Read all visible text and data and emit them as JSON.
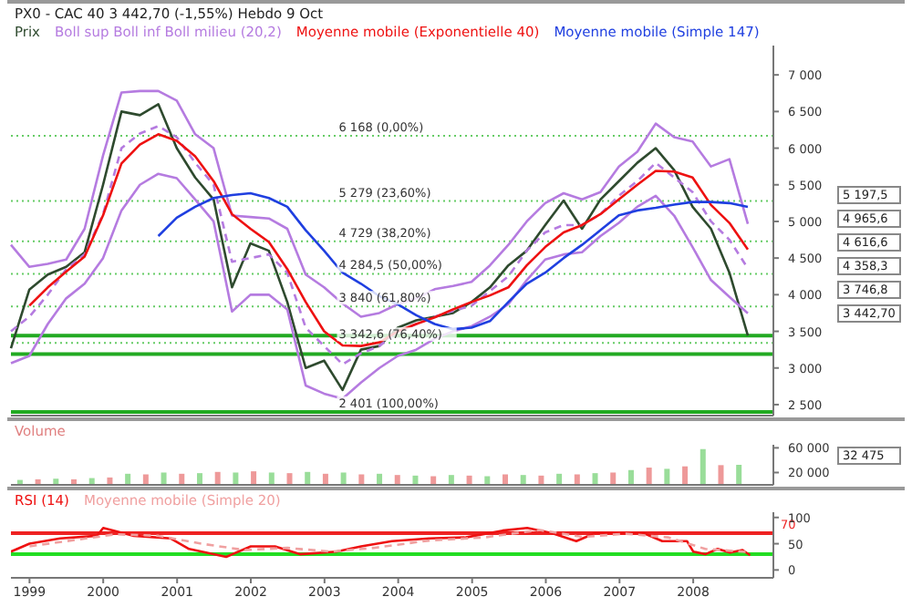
{
  "chart_data": [
    {
      "type": "line",
      "title": "PX0 - CAC 40   3 442,70 (-1,55%)   Hebdo  9 Oct",
      "tick_labels": "y",
      "categories": [
        null,
        null,
        null,
        null,
        null,
        null,
        null,
        null,
        null,
        null,
        null,
        null,
        null,
        null,
        null,
        null,
        null,
        null,
        null,
        null,
        null,
        null,
        null,
        null,
        null,
        null,
        null,
        null,
        null,
        null,
        null,
        null,
        null,
        null,
        null,
        null,
        null,
        null,
        null,
        null,
        null
      ],
      "ylim": [
        2350,
        7400
      ],
      "yticks": [
        {
          "value": 2500,
          "label": "2 500"
        },
        {
          "value": 3000,
          "label": "3 000"
        },
        {
          "value": 3500,
          "label": "3 500"
        },
        {
          "value": 4000,
          "label": "4 000"
        },
        {
          "value": 4500,
          "label": "4 500"
        },
        {
          "value": 5000,
          "label": "5 000"
        },
        {
          "value": 5500,
          "label": "5 500"
        },
        {
          "value": 6000,
          "label": "6 000"
        },
        {
          "value": 6500,
          "label": "6 500"
        },
        {
          "value": 7000,
          "label": "7 000"
        }
      ],
      "series": [
        {
          "name": "Prix",
          "color": "#2e4a2e",
          "values": [
            3270,
            4070,
            4275,
            4380,
            4580,
            5500,
            6500,
            6450,
            6600,
            6000,
            5600,
            5300,
            4100,
            4700,
            4600,
            3900,
            3000,
            3100,
            2700,
            3250,
            3300,
            3550,
            3650,
            3700,
            3750,
            3900,
            4100,
            4400,
            4600,
            4950,
            5285,
            4900,
            5300,
            5550,
            5800,
            6000,
            5700,
            5200,
            4900,
            4300,
            3442.7
          ]
        },
        {
          "name": "Boll sup Boll inf Boll milieu (20,2)",
          "color": "#b57be0",
          "values": [
            4680,
            4380,
            4420,
            4480,
            4900,
            5900,
            6760,
            6780,
            6780,
            6650,
            6190,
            6000,
            5080,
            5060,
            5040,
            4900,
            4275,
            4100,
            3880,
            3700,
            3750,
            3870,
            3950,
            4075,
            4120,
            4175,
            4400,
            4680,
            5000,
            5250,
            5385,
            5300,
            5400,
            5750,
            5950,
            6335,
            6150,
            6090,
            5750,
            5850,
            4965.6
          ]
        },
        {
          "color": "#b57be0",
          "values": [
            3065,
            3165,
            3600,
            3950,
            4150,
            4500,
            5150,
            5500,
            5650,
            5590,
            5300,
            5000,
            3770,
            4000,
            4000,
            3800,
            2760,
            2650,
            2580,
            2800,
            3000,
            3165,
            3250,
            3400,
            3500,
            3570,
            3700,
            3870,
            4200,
            4480,
            4550,
            4580,
            4800,
            4980,
            5200,
            5350,
            5080,
            4650,
            4200,
            3970,
            3746.8
          ]
        },
        {
          "color": "#b57be0",
          "line_style": "dashed",
          "values": [
            3500,
            3700,
            4000,
            4350,
            4550,
            5100,
            6000,
            6200,
            6300,
            6150,
            5800,
            5500,
            4450,
            4500,
            4550,
            4300,
            3550,
            3300,
            3050,
            3200,
            3300,
            3500,
            3600,
            3700,
            3780,
            3850,
            4050,
            4250,
            4600,
            4850,
            4950,
            4950,
            5100,
            5350,
            5550,
            5800,
            5600,
            5400,
            5000,
            4750,
            4358.3
          ]
        },
        {
          "name": "Moyenne mobile (Exponentielle 40)",
          "color": "#ee1111",
          "values": [
            null,
            3850,
            4100,
            4316,
            4520,
            5083,
            5790,
            6050,
            6190,
            6100,
            5890,
            5550,
            5100,
            4900,
            4720,
            4350,
            3900,
            3500,
            3307,
            3300,
            3350,
            3500,
            3600,
            3690,
            3800,
            3900,
            3990,
            4100,
            4400,
            4650,
            4850,
            4950,
            5100,
            5300,
            5500,
            5690,
            5680,
            5600,
            5225,
            4980,
            4616.6
          ]
        },
        {
          "name": "Moyenne mobile (Simple 147)",
          "color": "#1f3fe0",
          "values": [
            null,
            null,
            null,
            null,
            null,
            null,
            null,
            null,
            4800,
            5050,
            5200,
            5320,
            5360,
            5385,
            5320,
            5200,
            4880,
            4600,
            4300,
            4150,
            3980,
            3870,
            3720,
            3600,
            3530,
            3550,
            3640,
            3900,
            4150,
            4300,
            4500,
            4680,
            4880,
            5083,
            5150,
            5185,
            5230,
            5265,
            5265,
            5250,
            5197.5
          ]
        }
      ],
      "ref_lines": [
        {
          "axis": "y",
          "value": 6168,
          "label": "6 168 (0,00%)",
          "color": "#66cc66",
          "line_style": "dotted"
        },
        {
          "axis": "y",
          "value": 5279,
          "label": "5 279 (23,60%)",
          "color": "#66cc66",
          "line_style": "dotted"
        },
        {
          "axis": "y",
          "value": 4729,
          "label": "4 729 (38,20%)",
          "color": "#66cc66",
          "line_style": "dotted"
        },
        {
          "axis": "y",
          "value": 4284.5,
          "label": "4 284,5 (50,00%)",
          "color": "#66cc66",
          "line_style": "dotted"
        },
        {
          "axis": "y",
          "value": 3840,
          "label": "3 840 (61,80%)",
          "color": "#66cc66",
          "line_style": "dotted"
        },
        {
          "axis": "y",
          "value": 3342.6,
          "label": "3 342,6 (76,40%)",
          "color": "#66cc66",
          "line_style": "dotted"
        },
        {
          "axis": "y",
          "value": 2401,
          "label": "2 401 (100,00%)",
          "color": "#22aa22",
          "line_style": "solid"
        },
        {
          "axis": "y",
          "value": 3442.7,
          "color": "#22aa22",
          "line_style": "solid"
        },
        {
          "axis": "y",
          "value": 3190,
          "color": "#22aa22",
          "line_style": "solid"
        }
      ],
      "annotations": [
        "5 197,5",
        "4 965,6",
        "4 616,6",
        "4 358,3",
        "3 746,8",
        "3 442,70"
      ]
    },
    {
      "type": "bar",
      "title": "Volume",
      "tick_labels": "y",
      "categories": [
        null,
        null,
        null,
        null,
        null,
        null,
        null,
        null,
        null,
        null,
        null,
        null,
        null,
        null,
        null,
        null,
        null,
        null,
        null,
        null,
        null,
        null,
        null,
        null,
        null,
        null,
        null,
        null,
        null,
        null,
        null,
        null,
        null,
        null,
        null,
        null,
        null,
        null,
        null,
        null,
        null
      ],
      "ylim": [
        0,
        65000
      ],
      "yticks": [
        {
          "value": 20000,
          "label": "20 000"
        },
        {
          "value": 60000,
          "label": "60 000"
        }
      ],
      "values": [
        8000,
        9000,
        10000,
        9000,
        11000,
        12000,
        18000,
        17000,
        20000,
        18000,
        19000,
        21000,
        20000,
        22000,
        20000,
        19000,
        21000,
        18000,
        20000,
        17000,
        18000,
        16000,
        15000,
        14000,
        16000,
        15000,
        14000,
        17000,
        16000,
        15000,
        18000,
        17000,
        19000,
        20000,
        24000,
        28000,
        26000,
        30000,
        58000,
        32000,
        32475
      ],
      "colors": [
        "#99dd99",
        "#ee9999",
        "#99dd99",
        "#ee9999",
        "#99dd99",
        "#ee9999",
        "#99dd99",
        "#ee9999",
        "#99dd99",
        "#ee9999",
        "#99dd99",
        "#ee9999",
        "#99dd99",
        "#ee9999",
        "#99dd99",
        "#ee9999",
        "#99dd99",
        "#ee9999",
        "#99dd99",
        "#ee9999",
        "#99dd99",
        "#ee9999",
        "#99dd99",
        "#ee9999",
        "#99dd99",
        "#ee9999",
        "#99dd99",
        "#ee9999",
        "#99dd99",
        "#ee9999",
        "#99dd99",
        "#ee9999",
        "#99dd99",
        "#ee9999",
        "#99dd99",
        "#ee9999",
        "#99dd99",
        "#ee9999",
        "#99dd99",
        "#ee9999",
        "#99dd99"
      ],
      "annotations": [
        "32 475"
      ]
    },
    {
      "type": "line",
      "xlim": [
        "1998-10",
        "2009-02"
      ],
      "xticks": [
        "1999",
        "2000",
        "2001",
        "2002",
        "2003",
        "2004",
        "2005",
        "2006",
        "2007",
        "2008"
      ],
      "ylim": [
        -15,
        110
      ],
      "yticks": [
        0,
        50,
        100
      ],
      "series": [
        {
          "name": "RSI (14)",
          "color": "#ee1111",
          "x": [
            "1998-10",
            "1999-01",
            "1999-06",
            "1999-12",
            "2000-01",
            "2000-06",
            "2000-12",
            "2001-03",
            "2001-09",
            "2002-01",
            "2002-05",
            "2002-09",
            "2003-03",
            "2003-07",
            "2003-12",
            "2004-06",
            "2004-12",
            "2005-06",
            "2005-10",
            "2006-02",
            "2006-06",
            "2006-09",
            "2007-01",
            "2007-05",
            "2007-08",
            "2007-12",
            "2008-01",
            "2008-03",
            "2008-05",
            "2008-07",
            "2008-09",
            "2008-10-09"
          ],
          "values": [
            35,
            50,
            60,
            65,
            80,
            65,
            60,
            40,
            25,
            45,
            45,
            30,
            35,
            45,
            55,
            60,
            62,
            75,
            80,
            70,
            55,
            70,
            70,
            70,
            55,
            55,
            35,
            30,
            40,
            33,
            38,
            28
          ]
        },
        {
          "name": "Moyenne mobile (Simple 20)",
          "color": "#f0a0a0",
          "line_style": "dashed",
          "x": [
            "1999-01",
            "1999-09",
            "2000-03",
            "2000-10",
            "2001-05",
            "2001-12",
            "2002-07",
            "2003-02",
            "2003-09",
            "2004-06",
            "2005-03",
            "2005-12",
            "2006-07",
            "2007-02",
            "2007-09",
            "2008-03",
            "2008-10-09"
          ],
          "values": [
            45,
            58,
            68,
            65,
            50,
            38,
            42,
            35,
            42,
            56,
            62,
            76,
            63,
            69,
            62,
            40,
            34
          ]
        }
      ],
      "ref_lines": [
        {
          "axis": "y",
          "value": 70,
          "label": "70",
          "color": "#ee2222",
          "line_style": "solid"
        },
        {
          "axis": "y",
          "value": 30,
          "color": "#22dd22",
          "line_style": "solid"
        }
      ]
    }
  ]
}
